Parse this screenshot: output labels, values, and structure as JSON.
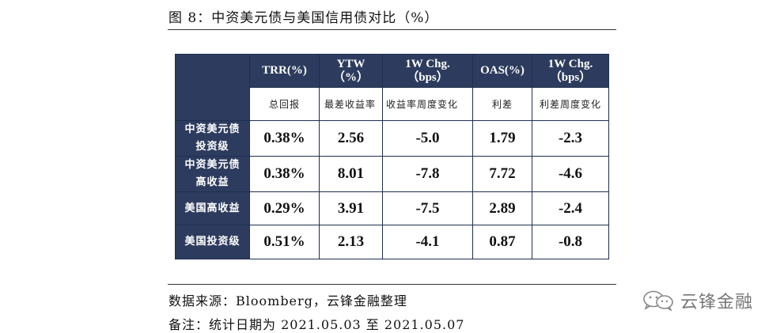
{
  "figure": {
    "title": "图 8：中资美元债与美国信用债对比（%）"
  },
  "table": {
    "headers": [
      {
        "label": "TRR(%)",
        "sub": "总回报"
      },
      {
        "label": "YTW\n（%）",
        "sub": "最差收益率"
      },
      {
        "label": "1W Chg.\n（bps）",
        "sub": "收益率周度变化"
      },
      {
        "label": "OAS(%)",
        "sub": "利差"
      },
      {
        "label": "1W Chg.\n（bps）",
        "sub": "利差周度变化"
      }
    ],
    "rows": [
      {
        "label": "中资美元债\n投资级",
        "values": [
          "0.38%",
          "2.56",
          "-5.0",
          "1.79",
          "-2.3"
        ]
      },
      {
        "label": "中资美元债\n高收益",
        "values": [
          "0.38%",
          "8.01",
          "-7.8",
          "7.72",
          "-4.6"
        ]
      },
      {
        "label": "美国高收益",
        "values": [
          "0.29%",
          "3.91",
          "-7.5",
          "2.89",
          "-2.4"
        ]
      },
      {
        "label": "美国投资级",
        "values": [
          "0.51%",
          "2.13",
          "-4.1",
          "0.87",
          "-0.8"
        ]
      }
    ]
  },
  "footer": {
    "source": "数据来源：Bloomberg，云锋金融整理",
    "note": "备注：统计日期为 2021.05.03 至 2021.05.07"
  },
  "watermark": {
    "text": "云锋金融",
    "icon": "wechat-icon"
  }
}
